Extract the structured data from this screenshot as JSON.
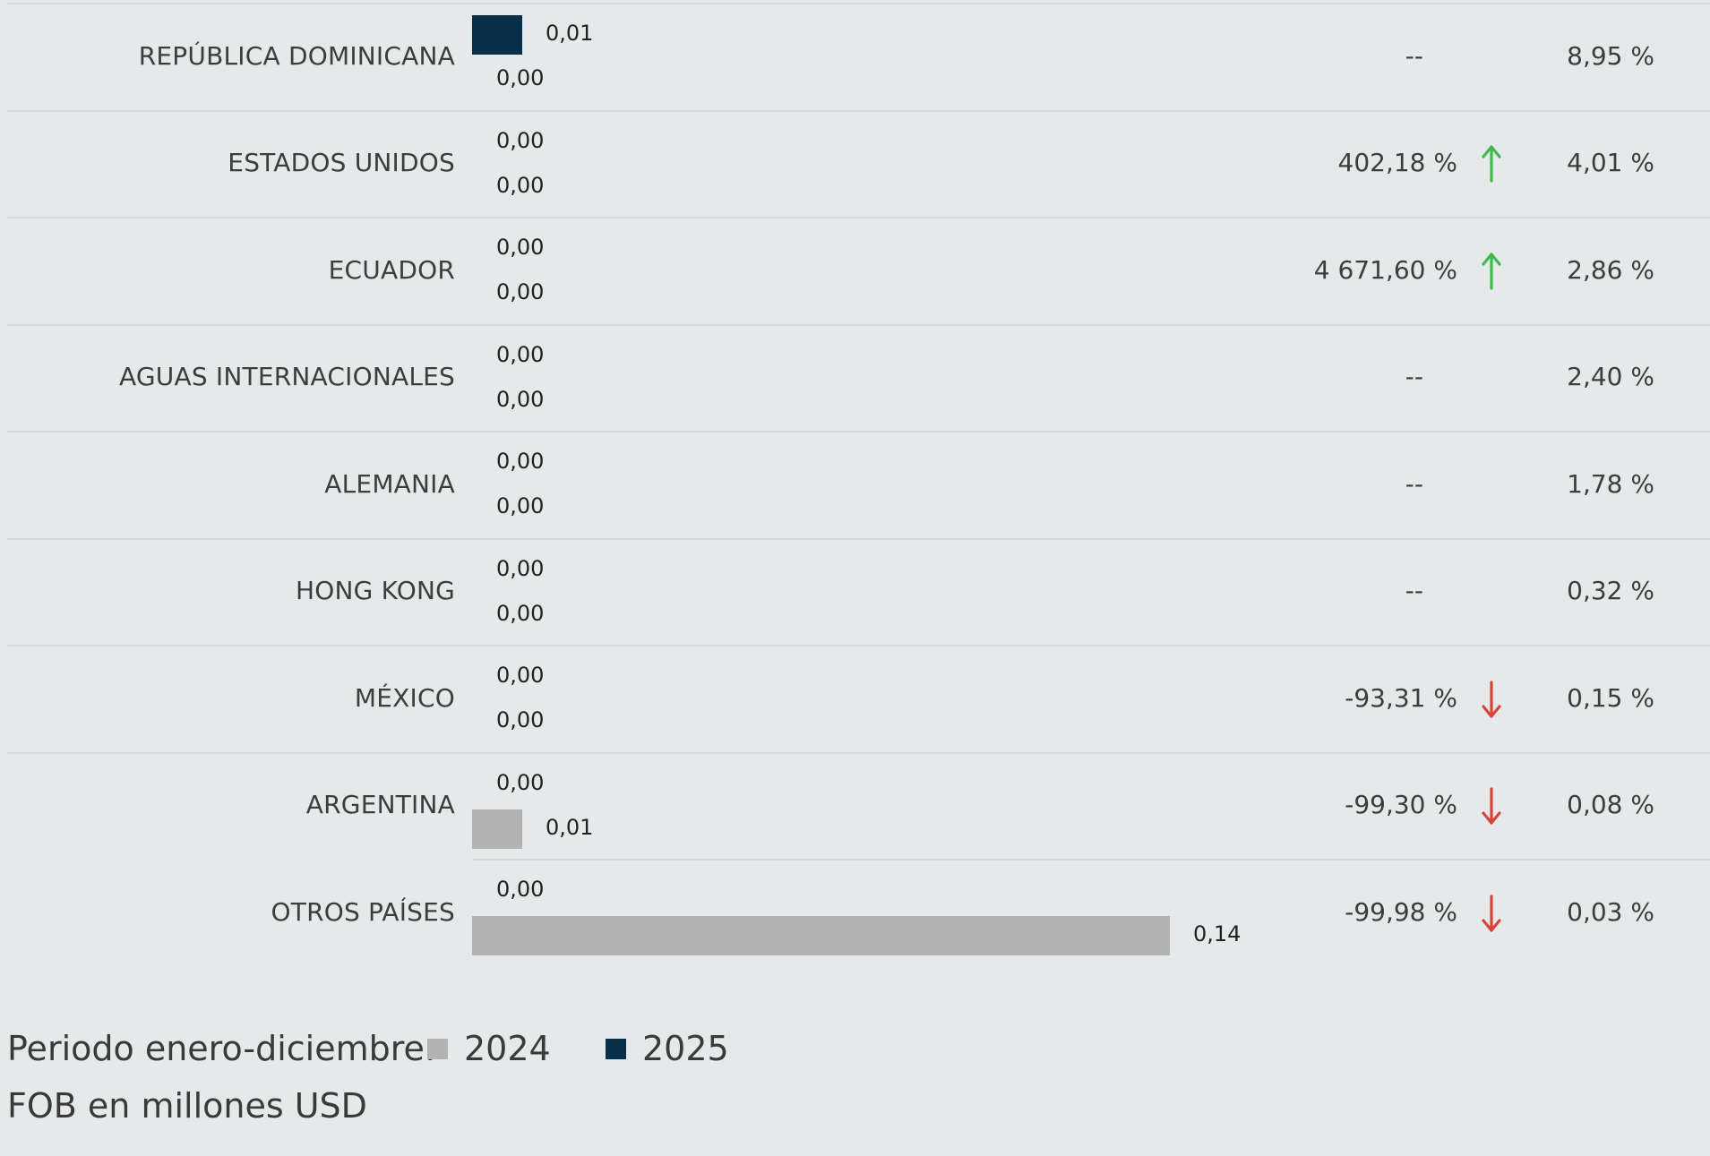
{
  "colors": {
    "y2024": "#b3b3b3",
    "y2025": "#0a2f4a",
    "up": "#3fb84e",
    "down": "#d9443a"
  },
  "chart_data": {
    "type": "bar",
    "orientation": "horizontal",
    "categories": [
      "REPÚBLICA DOMINICANA",
      "ESTADOS UNIDOS",
      "ECUADOR",
      "AGUAS INTERNACIONALES",
      "ALEMANIA",
      "HONG KONG",
      "MÉXICO",
      "ARGENTINA",
      "OTROS PAÍSES"
    ],
    "series": [
      {
        "name": "2025",
        "values": [
          0.01,
          0.0,
          0.0,
          0.0,
          0.0,
          0.0,
          0.0,
          0.0,
          0.0
        ],
        "labels": [
          "0,01",
          "0,00",
          "0,00",
          "0,00",
          "0,00",
          "0,00",
          "0,00",
          "0,00",
          "0,00"
        ]
      },
      {
        "name": "2024",
        "values": [
          0.0,
          0.0,
          0.0,
          0.0,
          0.0,
          0.0,
          0.0,
          0.01,
          0.14
        ],
        "labels": [
          "0,00",
          "0,00",
          "0,00",
          "0,00",
          "0,00",
          "0,00",
          "0,00",
          "0,01",
          "0,14"
        ]
      }
    ],
    "variation": [
      "--",
      "402,18 %",
      "4 671,60 %",
      "--",
      "--",
      "--",
      "-93,31 %",
      "-99,30 %",
      "-99,98 %"
    ],
    "trend": [
      "none",
      "up",
      "up",
      "none",
      "none",
      "none",
      "down",
      "down",
      "down"
    ],
    "share": [
      "8,95 %",
      "4,01 %",
      "2,86 %",
      "2,40 %",
      "1,78 %",
      "0,32 %",
      "0,15 %",
      "0,08 %",
      "0,03 %"
    ],
    "xlim": [
      0,
      0.14
    ],
    "legend": {
      "title": "Periodo enero-diciembre:",
      "items": [
        "2024",
        "2025"
      ],
      "placement": "bottom-left"
    },
    "note": "FOB en millones USD"
  }
}
